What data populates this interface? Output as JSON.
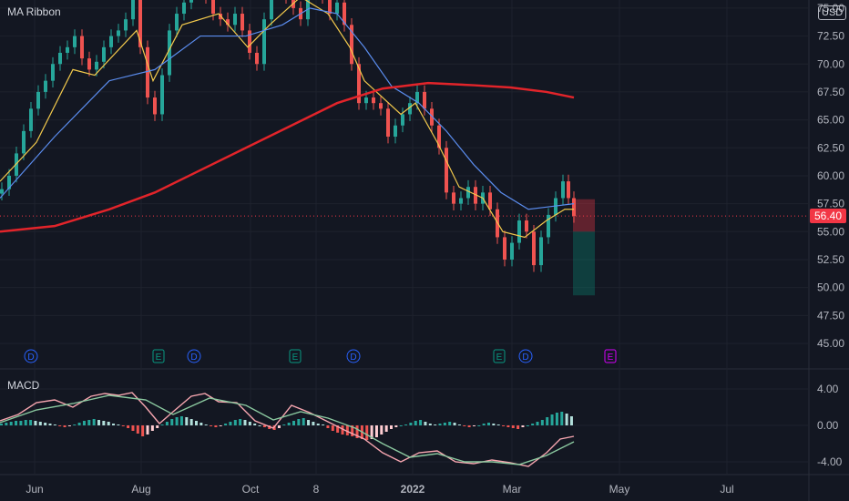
{
  "chart_data": [
    {
      "type": "line",
      "title": "MA Ribbon",
      "currency": "USD",
      "last_price": "56.40",
      "y_ticks": [
        "75.00",
        "72.50",
        "70.00",
        "67.50",
        "65.00",
        "62.50",
        "60.00",
        "57.50",
        "55.00",
        "52.50",
        "50.00",
        "47.50",
        "45.00"
      ],
      "x_ticks": [
        "Jun",
        "Aug",
        "Oct",
        "8",
        "2022",
        "Mar",
        "May",
        "Jul"
      ],
      "ylim": [
        45,
        76
      ],
      "grid": true,
      "series": [
        {
          "name": "",
          "color": "#d1d4dc",
          "values": [
            [
              0,
              58.8
            ],
            [
              8,
              60.0
            ],
            [
              16,
              62.0
            ],
            [
              24,
              64.0
            ],
            [
              32,
              66.0
            ],
            [
              40,
              67.5
            ],
            [
              48,
              68.5
            ],
            [
              56,
              70.0
            ],
            [
              64,
              71.0
            ],
            [
              72,
              71.5
            ],
            [
              80,
              72.5
            ],
            [
              88,
              70.5
            ],
            [
              96,
              69.5
            ],
            [
              104,
              70.2
            ],
            [
              112,
              71.5
            ],
            [
              120,
              72.5
            ],
            [
              128,
              73.0
            ],
            [
              136,
              74.0
            ],
            [
              144,
              76.0
            ],
            [
              152,
              71.5
            ],
            [
              160,
              67.0
            ],
            [
              168,
              65.5
            ],
            [
              176,
              69.0
            ],
            [
              184,
              73.0
            ],
            [
              192,
              74.5
            ],
            [
              200,
              75.5
            ],
            [
              208,
              76.5
            ],
            [
              216,
              77.0
            ],
            [
              224,
              76.0
            ],
            [
              232,
              74.5
            ],
            [
              240,
              74.0
            ],
            [
              248,
              73.5
            ],
            [
              256,
              74.5
            ],
            [
              264,
              73.0
            ],
            [
              272,
              71.0
            ],
            [
              280,
              70.0
            ],
            [
              288,
              74.0
            ],
            [
              296,
              77.0
            ],
            [
              304,
              76.5
            ],
            [
              312,
              76.0
            ],
            [
              320,
              75.0
            ],
            [
              328,
              74.0
            ],
            [
              336,
              76.5
            ],
            [
              344,
              77.0
            ],
            [
              352,
              76.0
            ],
            [
              360,
              74.5
            ],
            [
              368,
              75.5
            ],
            [
              376,
              73.5
            ],
            [
              384,
              70.0
            ],
            [
              392,
              66.5
            ],
            [
              400,
              67.0
            ],
            [
              408,
              66.5
            ],
            [
              416,
              66.0
            ],
            [
              424,
              63.5
            ],
            [
              432,
              64.5
            ],
            [
              440,
              65.5
            ],
            [
              448,
              66.5
            ],
            [
              456,
              67.5
            ],
            [
              464,
              66.0
            ],
            [
              472,
              64.5
            ],
            [
              480,
              62.5
            ],
            [
              488,
              58.5
            ],
            [
              496,
              57.5
            ],
            [
              504,
              58.0
            ],
            [
              512,
              59.0
            ],
            [
              520,
              57.5
            ],
            [
              528,
              58.5
            ],
            [
              536,
              57.0
            ],
            [
              544,
              54.5
            ],
            [
              552,
              52.5
            ],
            [
              560,
              54.0
            ],
            [
              568,
              56.0
            ],
            [
              576,
              55.0
            ],
            [
              584,
              52.0
            ],
            [
              592,
              54.5
            ],
            [
              600,
              56.5
            ],
            [
              608,
              58.0
            ],
            [
              616,
              59.5
            ],
            [
              622,
              58.0
            ],
            [
              628,
              56.4
            ]
          ]
        },
        {
          "name": "",
          "color": "#f2c94c",
          "values": [
            [
              0,
              59.5
            ],
            [
              40,
              63.0
            ],
            [
              80,
              69.5
            ],
            [
              104,
              69.0
            ],
            [
              150,
              73.0
            ],
            [
              168,
              68.5
            ],
            [
              200,
              73.5
            ],
            [
              240,
              74.5
            ],
            [
              272,
              71.5
            ],
            [
              296,
              73.5
            ],
            [
              330,
              76.0
            ],
            [
              360,
              74.5
            ],
            [
              384,
              71.5
            ],
            [
              400,
              68.5
            ],
            [
              440,
              65.5
            ],
            [
              456,
              66.5
            ],
            [
              480,
              63.0
            ],
            [
              504,
              59.0
            ],
            [
              530,
              58.0
            ],
            [
              552,
              55.0
            ],
            [
              576,
              54.5
            ],
            [
              600,
              56.0
            ],
            [
              620,
              57.0
            ],
            [
              630,
              57.0
            ]
          ]
        },
        {
          "name": "",
          "color": "#5b8def",
          "values": [
            [
              0,
              58.0
            ],
            [
              60,
              63.5
            ],
            [
              120,
              68.5
            ],
            [
              170,
              69.5
            ],
            [
              220,
              72.5
            ],
            [
              270,
              72.5
            ],
            [
              310,
              73.5
            ],
            [
              340,
              75.0
            ],
            [
              370,
              74.5
            ],
            [
              400,
              71.5
            ],
            [
              430,
              68.0
            ],
            [
              460,
              66.5
            ],
            [
              490,
              64.0
            ],
            [
              520,
              61.0
            ],
            [
              550,
              58.5
            ],
            [
              580,
              57.0
            ],
            [
              600,
              57.2
            ],
            [
              630,
              57.5
            ]
          ]
        },
        {
          "name": "",
          "color": "#e2242a",
          "values": [
            [
              0,
              55.0
            ],
            [
              60,
              55.5
            ],
            [
              120,
              57.0
            ],
            [
              170,
              58.5
            ],
            [
              220,
              60.5
            ],
            [
              270,
              62.5
            ],
            [
              320,
              64.5
            ],
            [
              370,
              66.5
            ],
            [
              420,
              67.8
            ],
            [
              470,
              68.3
            ],
            [
              520,
              68.1
            ],
            [
              560,
              67.9
            ],
            [
              600,
              67.5
            ],
            [
              630,
              67.0
            ]
          ]
        }
      ],
      "forecast_zone": {
        "entry": 55.0,
        "stop": 57.9,
        "target": 49.3
      },
      "events": [
        "D",
        "E",
        "D",
        "E",
        "D",
        "E",
        "D",
        "E"
      ]
    },
    {
      "type": "line",
      "title": "MACD",
      "y_ticks": [
        "4.00",
        "0.00",
        "-4.00"
      ],
      "ylim": [
        -5.5,
        5
      ],
      "series": [
        {
          "name": "",
          "color": "#f7a6b0",
          "values": [
            [
              0,
              0.5
            ],
            [
              20,
              1.2
            ],
            [
              40,
              2.5
            ],
            [
              60,
              2.8
            ],
            [
              80,
              2.0
            ],
            [
              100,
              3.2
            ],
            [
              115,
              3.5
            ],
            [
              130,
              3.3
            ],
            [
              145,
              3.6
            ],
            [
              160,
              2.0
            ],
            [
              175,
              0.2
            ],
            [
              190,
              1.5
            ],
            [
              210,
              3.2
            ],
            [
              225,
              3.5
            ],
            [
              240,
              2.6
            ],
            [
              260,
              2.5
            ],
            [
              280,
              0.5
            ],
            [
              300,
              -0.3
            ],
            [
              320,
              2.2
            ],
            [
              340,
              1.4
            ],
            [
              360,
              0.4
            ],
            [
              380,
              -0.6
            ],
            [
              400,
              -1.5
            ],
            [
              420,
              -3.0
            ],
            [
              440,
              -4.0
            ],
            [
              460,
              -3.0
            ],
            [
              480,
              -2.8
            ],
            [
              500,
              -4.0
            ],
            [
              520,
              -4.2
            ],
            [
              540,
              -3.8
            ],
            [
              560,
              -4.1
            ],
            [
              580,
              -4.5
            ],
            [
              600,
              -3.0
            ],
            [
              615,
              -1.5
            ],
            [
              630,
              -1.2
            ]
          ]
        },
        {
          "name": "",
          "color": "#8bc9a0",
          "values": [
            [
              0,
              0.3
            ],
            [
              40,
              1.7
            ],
            [
              80,
              2.4
            ],
            [
              120,
              3.3
            ],
            [
              160,
              2.8
            ],
            [
              190,
              1.2
            ],
            [
              230,
              3.0
            ],
            [
              270,
              2.2
            ],
            [
              300,
              0.6
            ],
            [
              330,
              1.5
            ],
            [
              360,
              0.8
            ],
            [
              390,
              -0.3
            ],
            [
              420,
              -2.0
            ],
            [
              450,
              -3.5
            ],
            [
              480,
              -3.1
            ],
            [
              510,
              -4.0
            ],
            [
              540,
              -4.0
            ],
            [
              570,
              -4.3
            ],
            [
              600,
              -3.3
            ],
            [
              630,
              -1.8
            ]
          ]
        }
      ],
      "histogram": [
        0.2,
        0.3,
        0.4,
        0.5,
        0.5,
        0.6,
        0.6,
        0.5,
        0.4,
        0.3,
        0.2,
        0.1,
        -0.1,
        -0.2,
        -0.1,
        0.1,
        0.3,
        0.5,
        0.6,
        0.7,
        0.6,
        0.5,
        0.4,
        0.2,
        0.1,
        -0.1,
        -0.3,
        -0.6,
        -0.9,
        -1.2,
        -1.0,
        -0.6,
        -0.3,
        0.1,
        0.4,
        0.7,
        0.9,
        1.0,
        0.9,
        0.7,
        0.5,
        0.3,
        0.1,
        -0.1,
        -0.2,
        -0.1,
        0.2,
        0.4,
        0.6,
        0.7,
        0.6,
        0.4,
        0.2,
        0.0,
        -0.2,
        -0.4,
        -0.5,
        -0.3,
        0.1,
        0.3,
        0.5,
        0.7,
        0.8,
        0.6,
        0.4,
        0.2,
        0.1,
        -0.3,
        -0.6,
        -0.8,
        -1.0,
        -1.1,
        -1.2,
        -1.4,
        -1.5,
        -1.6,
        -1.5,
        -1.3,
        -1.0,
        -0.7,
        -0.4,
        -0.2,
        0.0,
        0.1,
        0.3,
        0.5,
        0.6,
        0.4,
        0.2,
        0.1,
        0.2,
        0.3,
        0.4,
        0.3,
        0.1,
        -0.1,
        -0.2,
        -0.1,
        0.0,
        0.2,
        0.3,
        0.2,
        0.1,
        -0.1,
        -0.2,
        -0.3,
        -0.4,
        -0.2,
        0.0,
        0.2,
        0.4,
        0.6,
        0.9,
        1.2,
        1.4,
        1.5,
        1.3,
        1.0
      ]
    }
  ]
}
